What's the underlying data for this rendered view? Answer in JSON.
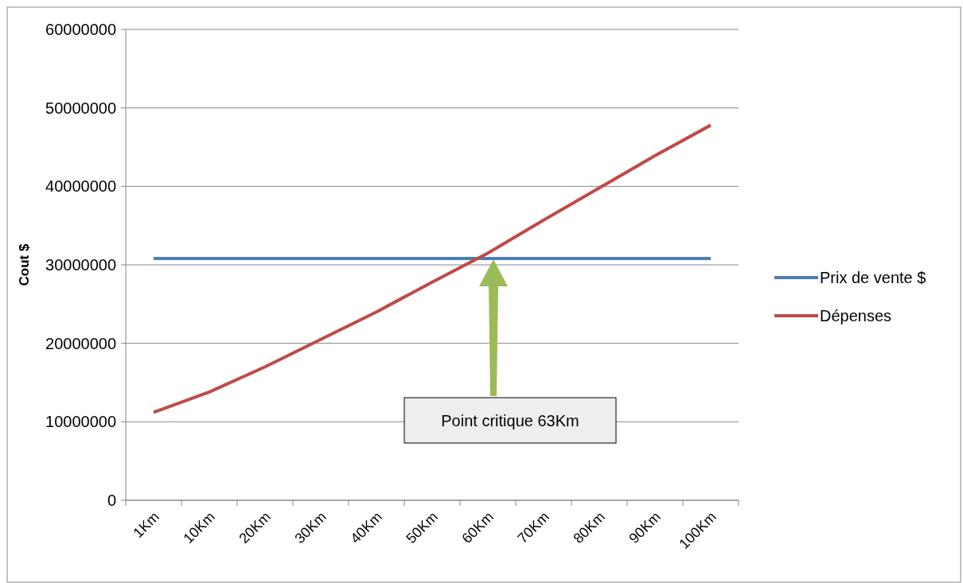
{
  "chart_data": {
    "type": "line",
    "ylabel": "Cout $",
    "categories": [
      "1Km",
      "10Km",
      "20Km",
      "30Km",
      "40Km",
      "50Km",
      "60Km",
      "70Km",
      "80Km",
      "90Km",
      "100Km"
    ],
    "series": [
      {
        "name": "Prix de vente $",
        "color": "#4a7ebb",
        "values": [
          30800000,
          30800000,
          30800000,
          30800000,
          30800000,
          30800000,
          30800000,
          30800000,
          30800000,
          30800000,
          30800000
        ]
      },
      {
        "name": "Dépenses",
        "color": "#be4b48",
        "values": [
          11200000,
          13800000,
          17000000,
          20500000,
          24000000,
          27800000,
          31500000,
          35700000,
          39800000,
          43900000,
          47800000
        ]
      }
    ],
    "ylim": [
      0,
      60000000
    ],
    "yticks": [
      0,
      10000000,
      20000000,
      30000000,
      40000000,
      50000000,
      60000000
    ],
    "grid": "y",
    "legend": "right",
    "marker": "none",
    "line_style": "solid",
    "annotations": [
      "Point critique 63Km"
    ]
  }
}
